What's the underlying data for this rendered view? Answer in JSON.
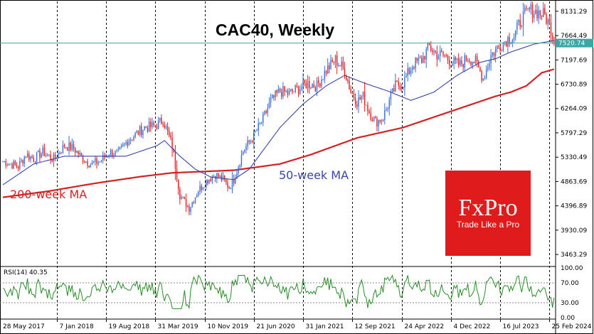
{
  "chart_data": {
    "type": "candlestick",
    "title": "CAC40, Weekly",
    "instrument": "CAC40",
    "timeframe": "Weekly",
    "y_ticks": [
      8131.29,
      7664.49,
      7197.69,
      6730.89,
      6264.09,
      5797.29,
      5330.49,
      4863.69,
      4396.89,
      3930.09,
      3463.29
    ],
    "ylim": [
      3260,
      8320
    ],
    "x_ticks": [
      "28 May 2017",
      "7 Jan 2018",
      "19 Aug 2018",
      "31 Mar 2019",
      "10 Nov 2019",
      "21 Jun 2020",
      "31 Jan 2021",
      "12 Sep 2021",
      "24 Apr 2022",
      "4 Dec 2022",
      "16 Jul 2023",
      "25 Feb 2024"
    ],
    "current_price": 7520.74,
    "price_anchors": [
      [
        0,
        5250
      ],
      [
        5,
        5200
      ],
      [
        10,
        5150
      ],
      [
        15,
        5380
      ],
      [
        20,
        5300
      ],
      [
        26,
        5430
      ],
      [
        33,
        5290
      ],
      [
        40,
        5550
      ],
      [
        46,
        5500
      ],
      [
        52,
        5300
      ],
      [
        57,
        5200
      ],
      [
        63,
        5250
      ],
      [
        69,
        5420
      ],
      [
        75,
        5400
      ],
      [
        81,
        5650
      ],
      [
        88,
        5810
      ],
      [
        92,
        5900
      ],
      [
        97,
        5920
      ],
      [
        100,
        5950
      ],
      [
        104,
        6050
      ],
      [
        110,
        5550
      ],
      [
        115,
        4600
      ],
      [
        121,
        4350
      ],
      [
        127,
        4700
      ],
      [
        133,
        4900
      ],
      [
        138,
        5000
      ],
      [
        143,
        4900
      ],
      [
        147,
        4750
      ],
      [
        150,
        4900
      ],
      [
        156,
        5450
      ],
      [
        162,
        5700
      ],
      [
        168,
        6000
      ],
      [
        174,
        6400
      ],
      [
        180,
        6600
      ],
      [
        186,
        6550
      ],
      [
        192,
        6650
      ],
      [
        198,
        6750
      ],
      [
        204,
        6700
      ],
      [
        210,
        7000
      ],
      [
        216,
        7200
      ],
      [
        222,
        7000
      ],
      [
        226,
        6600
      ],
      [
        230,
        6400
      ],
      [
        234,
        6500
      ],
      [
        238,
        6200
      ],
      [
        242,
        6000
      ],
      [
        247,
        6100
      ],
      [
        251,
        6400
      ],
      [
        255,
        6700
      ],
      [
        260,
        6750
      ],
      [
        266,
        7100
      ],
      [
        272,
        7200
      ],
      [
        277,
        7450
      ],
      [
        282,
        7300
      ],
      [
        287,
        7280
      ],
      [
        292,
        7150
      ],
      [
        297,
        7100
      ],
      [
        302,
        7250
      ],
      [
        307,
        7150
      ],
      [
        312,
        6850
      ],
      [
        317,
        7280
      ],
      [
        322,
        7450
      ],
      [
        327,
        7590
      ],
      [
        332,
        7650
      ],
      [
        337,
        8000
      ],
      [
        342,
        8150
      ],
      [
        347,
        8120
      ],
      [
        352,
        8050
      ],
      [
        356,
        7800
      ],
      [
        358,
        7520.74
      ]
    ],
    "ma50_anchors": [
      [
        0,
        4800
      ],
      [
        20,
        5200
      ],
      [
        40,
        5350
      ],
      [
        60,
        5350
      ],
      [
        80,
        5350
      ],
      [
        100,
        5550
      ],
      [
        105,
        5650
      ],
      [
        115,
        5350
      ],
      [
        125,
        5100
      ],
      [
        135,
        4950
      ],
      [
        150,
        4900
      ],
      [
        160,
        5100
      ],
      [
        170,
        5500
      ],
      [
        180,
        5900
      ],
      [
        195,
        6350
      ],
      [
        210,
        6700
      ],
      [
        222,
        6900
      ],
      [
        235,
        6750
      ],
      [
        250,
        6600
      ],
      [
        265,
        6420
      ],
      [
        280,
        6580
      ],
      [
        295,
        6900
      ],
      [
        310,
        7150
      ],
      [
        320,
        7220
      ],
      [
        330,
        7350
      ],
      [
        345,
        7500
      ],
      [
        358,
        7570
      ]
    ],
    "ma200_anchors": [
      [
        0,
        4560
      ],
      [
        30,
        4680
      ],
      [
        60,
        4830
      ],
      [
        90,
        4960
      ],
      [
        110,
        5030
      ],
      [
        150,
        5080
      ],
      [
        180,
        5200
      ],
      [
        200,
        5380
      ],
      [
        230,
        5700
      ],
      [
        260,
        5900
      ],
      [
        290,
        6200
      ],
      [
        320,
        6500
      ],
      [
        330,
        6580
      ],
      [
        340,
        6700
      ],
      [
        350,
        6950
      ],
      [
        358,
        7020
      ]
    ],
    "series": [
      {
        "name": "200-week MA",
        "color": "#d22222"
      },
      {
        "name": "50-week MA",
        "color": "#3a45a8"
      }
    ],
    "rsi": {
      "label": "RSI(14) 40.35",
      "period": 14,
      "value": 40.35,
      "ticks": [
        100.0,
        70.0,
        30.0,
        0.0
      ],
      "levels": [
        70,
        30
      ],
      "color": "#2a8a2a"
    },
    "colors": {
      "bull": "#3a6fd8",
      "bear": "#e02020",
      "price_line": "#3aa6a6",
      "price_tag_bg": "#3aa6a6"
    },
    "grid": "vertical-dashed"
  },
  "labels": {
    "ma200": "200-week MA",
    "ma50": "50-week MA"
  },
  "logo": {
    "name": "FxPro",
    "tagline": "Trade Like a Pro",
    "color": "#e01b1b"
  }
}
